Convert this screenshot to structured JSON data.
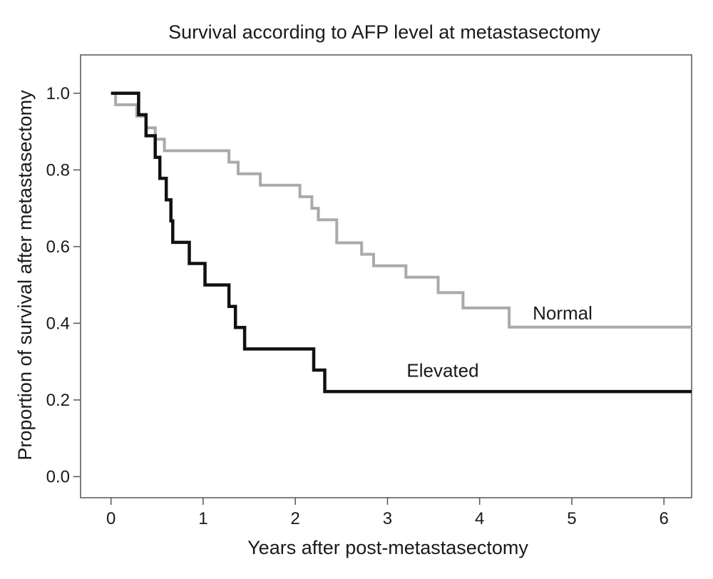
{
  "chart_data": {
    "type": "line",
    "step": true,
    "title": "Survival according to AFP level at metastasectomy",
    "xlabel": "Years after post-metastasectomy",
    "ylabel": "Proportion of survival after metastasectomy",
    "xlim": [
      -0.33,
      6.3
    ],
    "ylim": [
      -0.055,
      1.1
    ],
    "xticks": [
      0,
      1,
      2,
      3,
      4,
      5,
      6
    ],
    "xtick_labels": [
      "0",
      "1",
      "2",
      "3",
      "4",
      "5",
      "6"
    ],
    "yticks": [
      0.0,
      0.2,
      0.4,
      0.6,
      0.8,
      1.0
    ],
    "ytick_labels": [
      "0.0",
      "0.2",
      "0.4",
      "0.6",
      "0.8",
      "1.0"
    ],
    "grid": false,
    "legend": "none",
    "series": [
      {
        "name": "Normal",
        "color": "#aaaaaa",
        "label_at": [
          4.9,
          0.41
        ],
        "x": [
          0.0,
          0.05,
          0.18,
          0.28,
          0.38,
          0.48,
          0.58,
          0.68,
          0.78,
          1.28,
          1.38,
          1.62,
          2.05,
          2.18,
          2.25,
          2.45,
          2.72,
          2.85,
          3.2,
          3.55,
          3.82,
          4.32,
          6.3
        ],
        "y": [
          1.0,
          0.97,
          0.97,
          0.94,
          0.91,
          0.88,
          0.85,
          0.85,
          0.85,
          0.82,
          0.79,
          0.76,
          0.73,
          0.7,
          0.67,
          0.61,
          0.58,
          0.55,
          0.52,
          0.48,
          0.44,
          0.39,
          0.39
        ]
      },
      {
        "name": "Elevated",
        "color": "#111111",
        "label_at": [
          3.6,
          0.26
        ],
        "x": [
          0.0,
          0.3,
          0.38,
          0.48,
          0.53,
          0.6,
          0.65,
          0.67,
          0.85,
          1.02,
          1.28,
          1.35,
          1.45,
          2.2,
          2.32,
          6.3
        ],
        "y": [
          1.0,
          0.944,
          0.889,
          0.833,
          0.778,
          0.722,
          0.667,
          0.611,
          0.556,
          0.5,
          0.444,
          0.389,
          0.333,
          0.278,
          0.222,
          0.222
        ]
      }
    ]
  }
}
